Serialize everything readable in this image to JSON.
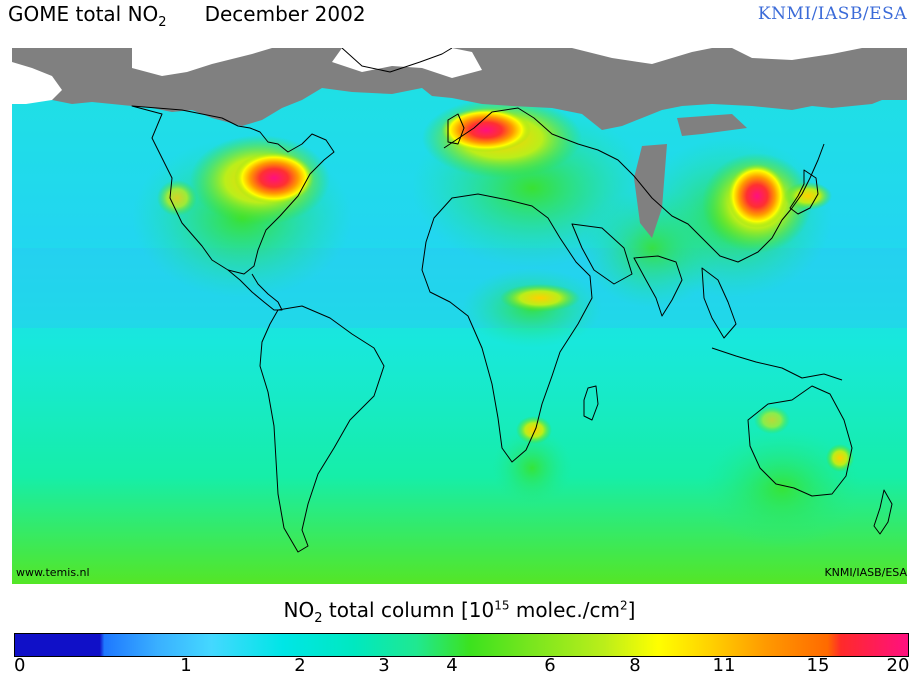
{
  "title": {
    "product": "GOME total NO",
    "subscript": "2",
    "date": "December 2002"
  },
  "credit": "KNMI/IASB/ESA",
  "watermark": {
    "left": "www.temis.nl",
    "right": "KNMI/IASB/ESA"
  },
  "colorbar": {
    "label_prefix": "NO",
    "label_sub": "2",
    "label_mid": " total column [10",
    "label_exp": "15",
    "label_unit": " molec./cm",
    "label_unit_sup": "2",
    "label_end": "]",
    "ticks": [
      "0",
      "1",
      "2",
      "3",
      "4",
      "6",
      "8",
      "11",
      "15",
      "20"
    ]
  },
  "colors": {
    "ocean_background": "#22dde8",
    "land_low": "#5ae64a",
    "no_data": "#808080",
    "hotspot": "#ff1080",
    "high": "#ff6a00",
    "mid": "#ffff00"
  }
}
